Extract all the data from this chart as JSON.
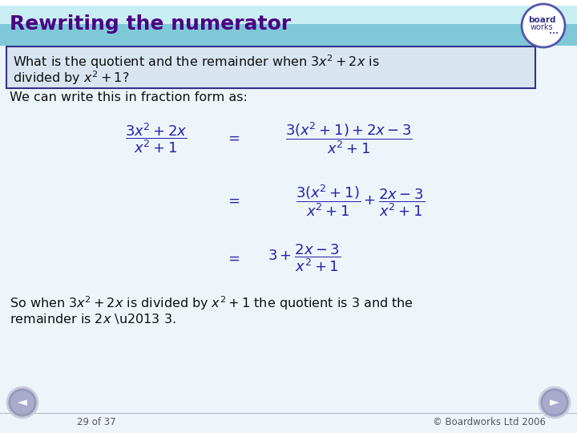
{
  "title": "Rewriting the numerator",
  "title_color": "#4B0082",
  "header_bg_light": "#C8EEF4",
  "header_bg_dark": "#7EC8D8",
  "slide_bg_color": "#EEF5FA",
  "question_box_bg": "#D8E4F0",
  "question_box_border": "#333388",
  "math_color": "#2222AA",
  "text_color": "#111111",
  "footer_left": "29 of 37",
  "footer_right": "© Boardworks Ltd 2006",
  "logo_border_color": "#5555AA",
  "logo_text_color": "#333388"
}
